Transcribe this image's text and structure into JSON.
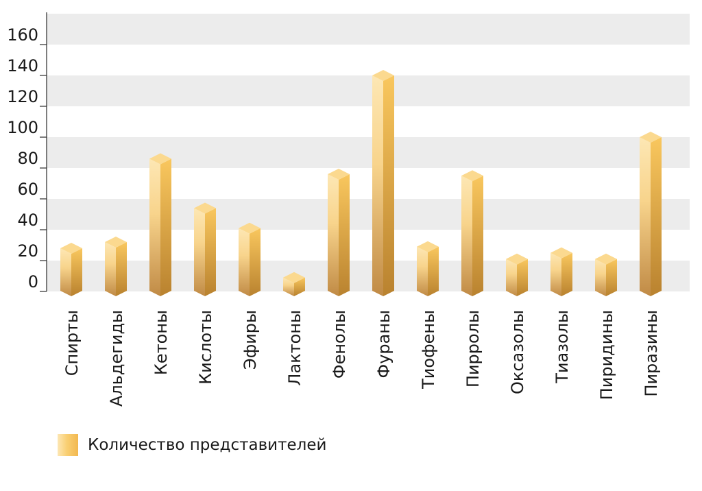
{
  "chart_data": {
    "type": "bar",
    "categories": [
      "Спирты",
      "Альдегиды",
      "Кетоны",
      "Кислоты",
      "Эфиры",
      "Лактоны",
      "Фенолы",
      "Фураны",
      "Тиофены",
      "Пирролы",
      "Оксазолы",
      "Тиазолы",
      "Пиридины",
      "Пиразины"
    ],
    "series": [
      {
        "name": "Количество представителей",
        "values": [
          28,
          32,
          86,
          54,
          41,
          9,
          76,
          140,
          29,
          75,
          21,
          25,
          21,
          100
        ]
      }
    ],
    "yticks": [
      0,
      20,
      40,
      60,
      80,
      100,
      120,
      140,
      160
    ],
    "ylim": [
      0,
      180
    ],
    "grid": "alternating bands",
    "legend_position": "bottom-left",
    "colors": {
      "bar_light": "#fde7b4",
      "bar_mid": "#f9cf73",
      "bar_dark": "#c08a45",
      "band": "#ececec"
    }
  },
  "legend": {
    "label": "Количество представителей"
  }
}
